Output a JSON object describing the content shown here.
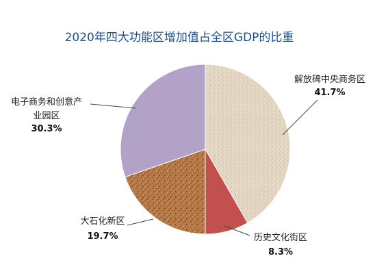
{
  "chart_data": {
    "type": "pie",
    "title": "2020年四大功能区增加值占全区GDP的比重",
    "unit": "%",
    "slices": [
      {
        "name": "解放碑中央商务区",
        "value": 41.7,
        "label": "41.7%",
        "color": "#e3d7c3",
        "texture": "linen"
      },
      {
        "name": "历史文化街区",
        "value": 8.3,
        "label": "8.3%",
        "color": "#c2504d",
        "texture": "solid"
      },
      {
        "name": "大石化新区",
        "value": 19.7,
        "label": "19.7%",
        "color": "#b57a48",
        "texture": "cork"
      },
      {
        "name": "电子商务和创意产业园区",
        "name_lines": [
          "电子商务和创意产",
          "业园区"
        ],
        "value": 30.3,
        "label": "30.3%",
        "color": "#b3a2c7",
        "texture": "solid"
      }
    ]
  }
}
